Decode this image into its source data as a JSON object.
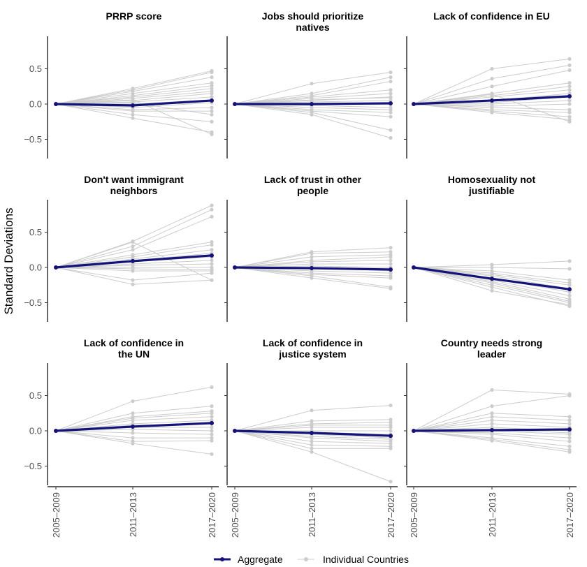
{
  "chart_data": {
    "type": "line",
    "ylabel": "Standard Deviations",
    "categories": [
      "2005–2009",
      "2011–2013",
      "2017–2020"
    ],
    "y_ticks": [
      0.5,
      0.0,
      -0.5
    ],
    "y_tick_labels": [
      "0.5",
      "0.0",
      "−0.5"
    ],
    "ylim": [
      -0.78,
      0.95
    ],
    "grid": false,
    "legend": {
      "position": "bottom",
      "aggregate": "Aggregate",
      "individual": "Individual Countries"
    },
    "colors": {
      "aggregate": "#13137a",
      "individual": "#cccccc"
    },
    "panels": [
      {
        "title": [
          "PRRP score"
        ],
        "aggregate": [
          0,
          -0.02,
          0.05
        ],
        "countries": [
          [
            0,
            0.22,
            0.47
          ],
          [
            0,
            0.2,
            0.45
          ],
          [
            0,
            0.18,
            0.38
          ],
          [
            0,
            0.15,
            0.3
          ],
          [
            0,
            0.12,
            0.26
          ],
          [
            0,
            0.1,
            0.22
          ],
          [
            0,
            0.08,
            0.18
          ],
          [
            0,
            0.05,
            0.15
          ],
          [
            0,
            0.03,
            0.1
          ],
          [
            0,
            0.0,
            0.06
          ],
          [
            0,
            -0.05,
            0.02
          ],
          [
            0,
            -0.08,
            -0.05
          ],
          [
            0,
            -0.1,
            -0.1
          ],
          [
            0,
            0.02,
            -0.15
          ],
          [
            0,
            -0.15,
            -0.25
          ],
          [
            0,
            -0.2,
            -0.4
          ],
          [
            0,
            0.06,
            -0.43
          ]
        ]
      },
      {
        "title": [
          "Jobs should prioritize",
          "natives"
        ],
        "aggregate": [
          0,
          0.0,
          0.01
        ],
        "countries": [
          [
            0,
            0.29,
            0.45
          ],
          [
            0,
            0.15,
            0.38
          ],
          [
            0,
            0.12,
            0.32
          ],
          [
            0,
            0.1,
            0.2
          ],
          [
            0,
            0.08,
            0.15
          ],
          [
            0,
            0.05,
            0.1
          ],
          [
            0,
            0.03,
            0.05
          ],
          [
            0,
            0.0,
            0.0
          ],
          [
            0,
            -0.02,
            -0.05
          ],
          [
            0,
            -0.05,
            -0.08
          ],
          [
            0,
            -0.08,
            -0.12
          ],
          [
            0,
            -0.1,
            -0.18
          ],
          [
            0,
            -0.12,
            -0.37
          ],
          [
            0,
            -0.15,
            -0.48
          ],
          [
            0,
            0.06,
            0.09
          ]
        ]
      },
      {
        "title": [
          "Lack of confidence in EU"
        ],
        "aggregate": [
          0,
          0.05,
          0.11
        ],
        "countries": [
          [
            0,
            0.5,
            0.64
          ],
          [
            0,
            0.36,
            0.55
          ],
          [
            0,
            0.25,
            0.48
          ],
          [
            0,
            0.15,
            0.3
          ],
          [
            0,
            0.12,
            0.25
          ],
          [
            0,
            0.1,
            0.2
          ],
          [
            0,
            0.05,
            0.15
          ],
          [
            0,
            0.02,
            0.1
          ],
          [
            0,
            0.0,
            0.05
          ],
          [
            0,
            -0.03,
            0.0
          ],
          [
            0,
            -0.05,
            -0.08
          ],
          [
            0,
            -0.08,
            -0.12
          ],
          [
            0,
            -0.1,
            -0.18
          ],
          [
            0,
            -0.12,
            -0.22
          ],
          [
            0,
            0.14,
            -0.25
          ]
        ]
      },
      {
        "title": [
          "Don't want immigrant",
          "neighbors"
        ],
        "aggregate": [
          0,
          0.09,
          0.17
        ],
        "countries": [
          [
            0,
            0.37,
            0.88
          ],
          [
            0,
            0.3,
            0.82
          ],
          [
            0,
            0.25,
            0.72
          ],
          [
            0,
            0.18,
            0.36
          ],
          [
            0,
            0.15,
            0.32
          ],
          [
            0,
            0.12,
            0.25
          ],
          [
            0,
            0.1,
            0.2
          ],
          [
            0,
            0.08,
            0.15
          ],
          [
            0,
            0.05,
            0.1
          ],
          [
            0,
            0.03,
            0.05
          ],
          [
            0,
            0.0,
            0.0
          ],
          [
            0,
            -0.02,
            -0.03
          ],
          [
            0,
            -0.05,
            -0.05
          ],
          [
            0,
            -0.18,
            -0.08
          ],
          [
            0,
            -0.24,
            -0.18
          ],
          [
            0,
            0.36,
            -0.18
          ]
        ]
      },
      {
        "title": [
          "Lack of trust in other",
          "people"
        ],
        "aggregate": [
          0,
          -0.01,
          -0.03
        ],
        "countries": [
          [
            0,
            0.22,
            0.28
          ],
          [
            0,
            0.2,
            0.22
          ],
          [
            0,
            0.15,
            0.18
          ],
          [
            0,
            0.1,
            0.15
          ],
          [
            0,
            0.08,
            0.1
          ],
          [
            0,
            0.05,
            0.05
          ],
          [
            0,
            0.02,
            0.0
          ],
          [
            0,
            0.0,
            -0.05
          ],
          [
            0,
            -0.05,
            -0.08
          ],
          [
            0,
            -0.08,
            -0.12
          ],
          [
            0,
            -0.1,
            -0.15
          ],
          [
            0,
            -0.12,
            -0.28
          ],
          [
            0,
            -0.15,
            -0.3
          ]
        ]
      },
      {
        "title": [
          "Homosexuality not",
          "justifiable"
        ],
        "aggregate": [
          0,
          -0.16,
          -0.31
        ],
        "countries": [
          [
            0,
            0.04,
            0.09
          ],
          [
            0,
            0.0,
            -0.02
          ],
          [
            0,
            -0.05,
            -0.18
          ],
          [
            0,
            -0.08,
            -0.22
          ],
          [
            0,
            -0.1,
            -0.25
          ],
          [
            0,
            -0.12,
            -0.3
          ],
          [
            0,
            -0.15,
            -0.35
          ],
          [
            0,
            -0.18,
            -0.4
          ],
          [
            0,
            -0.2,
            -0.45
          ],
          [
            0,
            -0.22,
            -0.48
          ],
          [
            0,
            -0.25,
            -0.5
          ],
          [
            0,
            -0.33,
            -0.53
          ],
          [
            0,
            -0.28,
            -0.55
          ]
        ]
      },
      {
        "title": [
          "Lack of confidence in",
          "the UN"
        ],
        "aggregate": [
          0,
          0.06,
          0.11
        ],
        "countries": [
          [
            0,
            0.42,
            0.62
          ],
          [
            0,
            0.25,
            0.35
          ],
          [
            0,
            0.2,
            0.28
          ],
          [
            0,
            0.18,
            0.25
          ],
          [
            0,
            0.15,
            0.2
          ],
          [
            0,
            0.1,
            0.15
          ],
          [
            0,
            0.08,
            0.1
          ],
          [
            0,
            0.05,
            0.05
          ],
          [
            0,
            0.02,
            0.0
          ],
          [
            0,
            -0.03,
            -0.05
          ],
          [
            0,
            -0.1,
            -0.1
          ],
          [
            0,
            -0.15,
            -0.14
          ],
          [
            0,
            -0.18,
            -0.33
          ]
        ]
      },
      {
        "title": [
          "Lack of confidence in",
          "justice system"
        ],
        "aggregate": [
          0,
          -0.03,
          -0.07
        ],
        "countries": [
          [
            0,
            0.29,
            0.36
          ],
          [
            0,
            0.14,
            0.16
          ],
          [
            0,
            0.1,
            0.12
          ],
          [
            0,
            0.08,
            0.08
          ],
          [
            0,
            0.05,
            0.05
          ],
          [
            0,
            0.0,
            0.0
          ],
          [
            0,
            -0.02,
            -0.05
          ],
          [
            0,
            -0.05,
            -0.1
          ],
          [
            0,
            -0.08,
            -0.12
          ],
          [
            0,
            -0.1,
            -0.15
          ],
          [
            0,
            -0.15,
            -0.18
          ],
          [
            0,
            -0.2,
            -0.22
          ],
          [
            0,
            -0.25,
            -0.25
          ],
          [
            0,
            -0.3,
            -0.72
          ]
        ]
      },
      {
        "title": [
          "Country needs strong",
          "leader"
        ],
        "aggregate": [
          0,
          0.01,
          0.02
        ],
        "countries": [
          [
            0,
            0.58,
            0.52
          ],
          [
            0,
            0.35,
            0.5
          ],
          [
            0,
            0.25,
            0.2
          ],
          [
            0,
            0.2,
            0.15
          ],
          [
            0,
            0.15,
            0.1
          ],
          [
            0,
            0.1,
            0.05
          ],
          [
            0,
            0.05,
            0.0
          ],
          [
            0,
            0.02,
            -0.03
          ],
          [
            0,
            0.0,
            -0.05
          ],
          [
            0,
            -0.03,
            -0.1
          ],
          [
            0,
            -0.05,
            -0.15
          ],
          [
            0,
            -0.1,
            -0.22
          ],
          [
            0,
            -0.12,
            -0.27
          ],
          [
            0,
            -0.14,
            -0.3
          ]
        ]
      }
    ]
  }
}
